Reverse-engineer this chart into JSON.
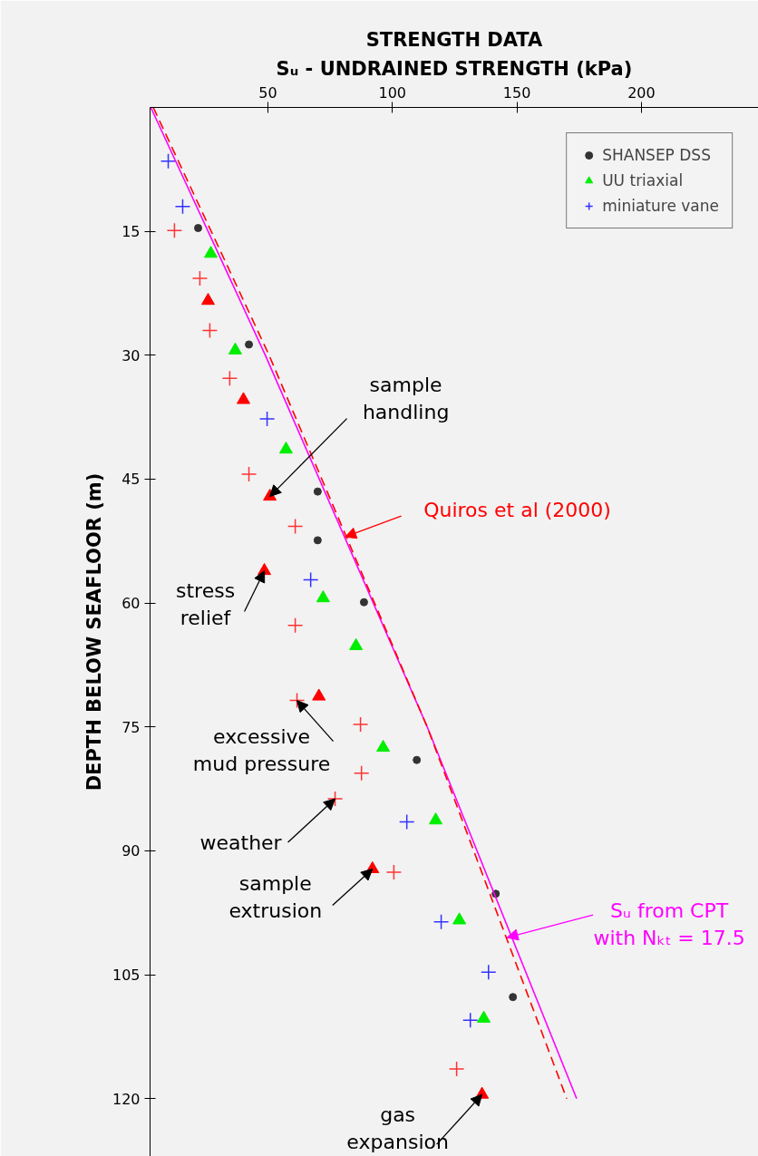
{
  "chart_data": {
    "type": "scatter",
    "title": "STRENGTH DATA",
    "xlabel": "Sᵤ - UNDRAINED STRENGTH (kPa)",
    "ylabel": "DEPTH BELOW SEAFLOOR (m)",
    "xlim": [
      2.7,
      247
    ],
    "xticks": [
      50,
      100,
      150,
      200
    ],
    "ylim": [
      127,
      0
    ],
    "yticks": [
      15,
      30,
      45,
      60,
      75,
      90,
      105,
      120
    ],
    "grid": false,
    "legend": "top right",
    "series": [
      {
        "name": "SHANSEP DSS",
        "marker": "circle",
        "color": "#333333",
        "x": [
          22.0,
          42.4,
          70.0,
          70.0,
          88.6,
          109.8,
          141.5,
          148.4
        ],
        "values": [
          14.6,
          28.7,
          46.5,
          52.4,
          59.9,
          79.0,
          95.2,
          107.7
        ]
      },
      {
        "name": "UU triaxial",
        "marker": "triangle",
        "color": "#00ee00",
        "x": [
          27.1,
          36.9,
          57.3,
          72.2,
          85.4,
          96.3,
          117.4,
          126.9,
          136.7
        ],
        "values": [
          17.7,
          29.4,
          41.4,
          59.4,
          65.2,
          77.5,
          86.3,
          98.4,
          110.3
        ]
      },
      {
        "name": "miniature vane",
        "marker": "cross",
        "color": "#3333ff",
        "x": [
          10.0,
          15.8,
          49.7,
          67.2,
          105.8,
          119.6,
          138.6,
          131.3
        ],
        "values": [
          6.5,
          12.0,
          37.7,
          57.2,
          86.5,
          98.6,
          104.7,
          110.5
        ]
      },
      {
        "marker": "triangle",
        "color": "#ff0000",
        "x": [
          26.0,
          40.2,
          50.8,
          48.6,
          70.5,
          92.0,
          136.0
        ],
        "values": [
          23.4,
          35.4,
          47.1,
          56.1,
          71.3,
          92.2,
          119.5
        ]
      },
      {
        "marker": "cross",
        "color": "#ff3333",
        "x": [
          12.5,
          22.7,
          26.7,
          34.7,
          42.4,
          61.0,
          61.0,
          61.7,
          87.2,
          87.6,
          77.0,
          100.6,
          125.8
        ],
        "values": [
          14.9,
          20.7,
          27.0,
          32.8,
          44.4,
          50.7,
          62.7,
          71.8,
          74.7,
          80.6,
          83.7,
          92.6,
          116.4
        ]
      },
      {
        "type": "line",
        "line_style": "solid",
        "color": "#ff00ff",
        "x": [
          3,
          49,
          114,
          174
        ],
        "values": [
          0,
          30,
          75,
          120
        ]
      },
      {
        "type": "line",
        "line_style": "dashed",
        "color": "#ff0000",
        "x": [
          4,
          50.5,
          114,
          170
        ],
        "values": [
          0,
          30,
          75,
          120
        ]
      }
    ],
    "annotations": [
      {
        "text": "sample\nhandling",
        "x": 50.8,
        "y": 47.1
      },
      {
        "text": "stress\nrelief",
        "x": 48.6,
        "y": 56.1
      },
      {
        "text": "excessive\nmud pressure",
        "x": 61.7,
        "y": 71.8
      },
      {
        "text": "weather",
        "x": 77.0,
        "y": 83.7
      },
      {
        "text": "sample\nextrusion",
        "x": 92.0,
        "y": 92.2
      },
      {
        "text": "gas\nexpansion",
        "x": 136.0,
        "y": 119.5
      },
      {
        "text": "Quiros et al (2000)",
        "x": 81,
        "y": 52
      },
      {
        "text": "Sᵤ from CPT\nwith Nₖₜ = 17.5",
        "x": 146,
        "y": 100.5
      }
    ]
  }
}
